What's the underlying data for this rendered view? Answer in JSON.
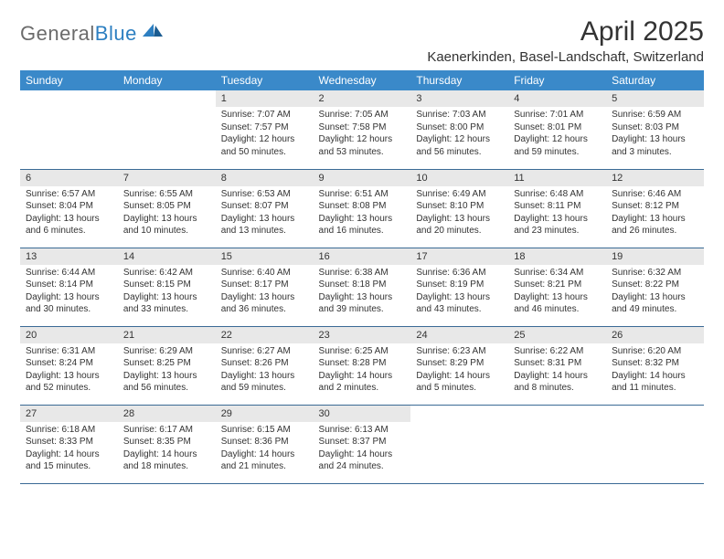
{
  "brand": {
    "name_part1": "General",
    "name_part2": "Blue",
    "logo_color": "#2d7fc1",
    "text_color": "#6b6b6b"
  },
  "title": "April 2025",
  "location": "Kaenerkinden, Basel-Landschaft, Switzerland",
  "colors": {
    "header_bg": "#3a89c9",
    "header_text": "#ffffff",
    "daynum_bg": "#e8e8e8",
    "border": "#3a6a95",
    "body_text": "#333333",
    "page_bg": "#ffffff"
  },
  "typography": {
    "title_fontsize": 30,
    "location_fontsize": 15,
    "header_fontsize": 12,
    "daynum_fontsize": 11,
    "body_fontsize": 10
  },
  "day_headers": [
    "Sunday",
    "Monday",
    "Tuesday",
    "Wednesday",
    "Thursday",
    "Friday",
    "Saturday"
  ],
  "weeks": [
    [
      {
        "empty": true
      },
      {
        "empty": true
      },
      {
        "num": "1",
        "sunrise": "Sunrise: 7:07 AM",
        "sunset": "Sunset: 7:57 PM",
        "daylight1": "Daylight: 12 hours",
        "daylight2": "and 50 minutes."
      },
      {
        "num": "2",
        "sunrise": "Sunrise: 7:05 AM",
        "sunset": "Sunset: 7:58 PM",
        "daylight1": "Daylight: 12 hours",
        "daylight2": "and 53 minutes."
      },
      {
        "num": "3",
        "sunrise": "Sunrise: 7:03 AM",
        "sunset": "Sunset: 8:00 PM",
        "daylight1": "Daylight: 12 hours",
        "daylight2": "and 56 minutes."
      },
      {
        "num": "4",
        "sunrise": "Sunrise: 7:01 AM",
        "sunset": "Sunset: 8:01 PM",
        "daylight1": "Daylight: 12 hours",
        "daylight2": "and 59 minutes."
      },
      {
        "num": "5",
        "sunrise": "Sunrise: 6:59 AM",
        "sunset": "Sunset: 8:03 PM",
        "daylight1": "Daylight: 13 hours",
        "daylight2": "and 3 minutes."
      }
    ],
    [
      {
        "num": "6",
        "sunrise": "Sunrise: 6:57 AM",
        "sunset": "Sunset: 8:04 PM",
        "daylight1": "Daylight: 13 hours",
        "daylight2": "and 6 minutes."
      },
      {
        "num": "7",
        "sunrise": "Sunrise: 6:55 AM",
        "sunset": "Sunset: 8:05 PM",
        "daylight1": "Daylight: 13 hours",
        "daylight2": "and 10 minutes."
      },
      {
        "num": "8",
        "sunrise": "Sunrise: 6:53 AM",
        "sunset": "Sunset: 8:07 PM",
        "daylight1": "Daylight: 13 hours",
        "daylight2": "and 13 minutes."
      },
      {
        "num": "9",
        "sunrise": "Sunrise: 6:51 AM",
        "sunset": "Sunset: 8:08 PM",
        "daylight1": "Daylight: 13 hours",
        "daylight2": "and 16 minutes."
      },
      {
        "num": "10",
        "sunrise": "Sunrise: 6:49 AM",
        "sunset": "Sunset: 8:10 PM",
        "daylight1": "Daylight: 13 hours",
        "daylight2": "and 20 minutes."
      },
      {
        "num": "11",
        "sunrise": "Sunrise: 6:48 AM",
        "sunset": "Sunset: 8:11 PM",
        "daylight1": "Daylight: 13 hours",
        "daylight2": "and 23 minutes."
      },
      {
        "num": "12",
        "sunrise": "Sunrise: 6:46 AM",
        "sunset": "Sunset: 8:12 PM",
        "daylight1": "Daylight: 13 hours",
        "daylight2": "and 26 minutes."
      }
    ],
    [
      {
        "num": "13",
        "sunrise": "Sunrise: 6:44 AM",
        "sunset": "Sunset: 8:14 PM",
        "daylight1": "Daylight: 13 hours",
        "daylight2": "and 30 minutes."
      },
      {
        "num": "14",
        "sunrise": "Sunrise: 6:42 AM",
        "sunset": "Sunset: 8:15 PM",
        "daylight1": "Daylight: 13 hours",
        "daylight2": "and 33 minutes."
      },
      {
        "num": "15",
        "sunrise": "Sunrise: 6:40 AM",
        "sunset": "Sunset: 8:17 PM",
        "daylight1": "Daylight: 13 hours",
        "daylight2": "and 36 minutes."
      },
      {
        "num": "16",
        "sunrise": "Sunrise: 6:38 AM",
        "sunset": "Sunset: 8:18 PM",
        "daylight1": "Daylight: 13 hours",
        "daylight2": "and 39 minutes."
      },
      {
        "num": "17",
        "sunrise": "Sunrise: 6:36 AM",
        "sunset": "Sunset: 8:19 PM",
        "daylight1": "Daylight: 13 hours",
        "daylight2": "and 43 minutes."
      },
      {
        "num": "18",
        "sunrise": "Sunrise: 6:34 AM",
        "sunset": "Sunset: 8:21 PM",
        "daylight1": "Daylight: 13 hours",
        "daylight2": "and 46 minutes."
      },
      {
        "num": "19",
        "sunrise": "Sunrise: 6:32 AM",
        "sunset": "Sunset: 8:22 PM",
        "daylight1": "Daylight: 13 hours",
        "daylight2": "and 49 minutes."
      }
    ],
    [
      {
        "num": "20",
        "sunrise": "Sunrise: 6:31 AM",
        "sunset": "Sunset: 8:24 PM",
        "daylight1": "Daylight: 13 hours",
        "daylight2": "and 52 minutes."
      },
      {
        "num": "21",
        "sunrise": "Sunrise: 6:29 AM",
        "sunset": "Sunset: 8:25 PM",
        "daylight1": "Daylight: 13 hours",
        "daylight2": "and 56 minutes."
      },
      {
        "num": "22",
        "sunrise": "Sunrise: 6:27 AM",
        "sunset": "Sunset: 8:26 PM",
        "daylight1": "Daylight: 13 hours",
        "daylight2": "and 59 minutes."
      },
      {
        "num": "23",
        "sunrise": "Sunrise: 6:25 AM",
        "sunset": "Sunset: 8:28 PM",
        "daylight1": "Daylight: 14 hours",
        "daylight2": "and 2 minutes."
      },
      {
        "num": "24",
        "sunrise": "Sunrise: 6:23 AM",
        "sunset": "Sunset: 8:29 PM",
        "daylight1": "Daylight: 14 hours",
        "daylight2": "and 5 minutes."
      },
      {
        "num": "25",
        "sunrise": "Sunrise: 6:22 AM",
        "sunset": "Sunset: 8:31 PM",
        "daylight1": "Daylight: 14 hours",
        "daylight2": "and 8 minutes."
      },
      {
        "num": "26",
        "sunrise": "Sunrise: 6:20 AM",
        "sunset": "Sunset: 8:32 PM",
        "daylight1": "Daylight: 14 hours",
        "daylight2": "and 11 minutes."
      }
    ],
    [
      {
        "num": "27",
        "sunrise": "Sunrise: 6:18 AM",
        "sunset": "Sunset: 8:33 PM",
        "daylight1": "Daylight: 14 hours",
        "daylight2": "and 15 minutes."
      },
      {
        "num": "28",
        "sunrise": "Sunrise: 6:17 AM",
        "sunset": "Sunset: 8:35 PM",
        "daylight1": "Daylight: 14 hours",
        "daylight2": "and 18 minutes."
      },
      {
        "num": "29",
        "sunrise": "Sunrise: 6:15 AM",
        "sunset": "Sunset: 8:36 PM",
        "daylight1": "Daylight: 14 hours",
        "daylight2": "and 21 minutes."
      },
      {
        "num": "30",
        "sunrise": "Sunrise: 6:13 AM",
        "sunset": "Sunset: 8:37 PM",
        "daylight1": "Daylight: 14 hours",
        "daylight2": "and 24 minutes."
      },
      {
        "empty": true
      },
      {
        "empty": true
      },
      {
        "empty": true
      }
    ]
  ]
}
